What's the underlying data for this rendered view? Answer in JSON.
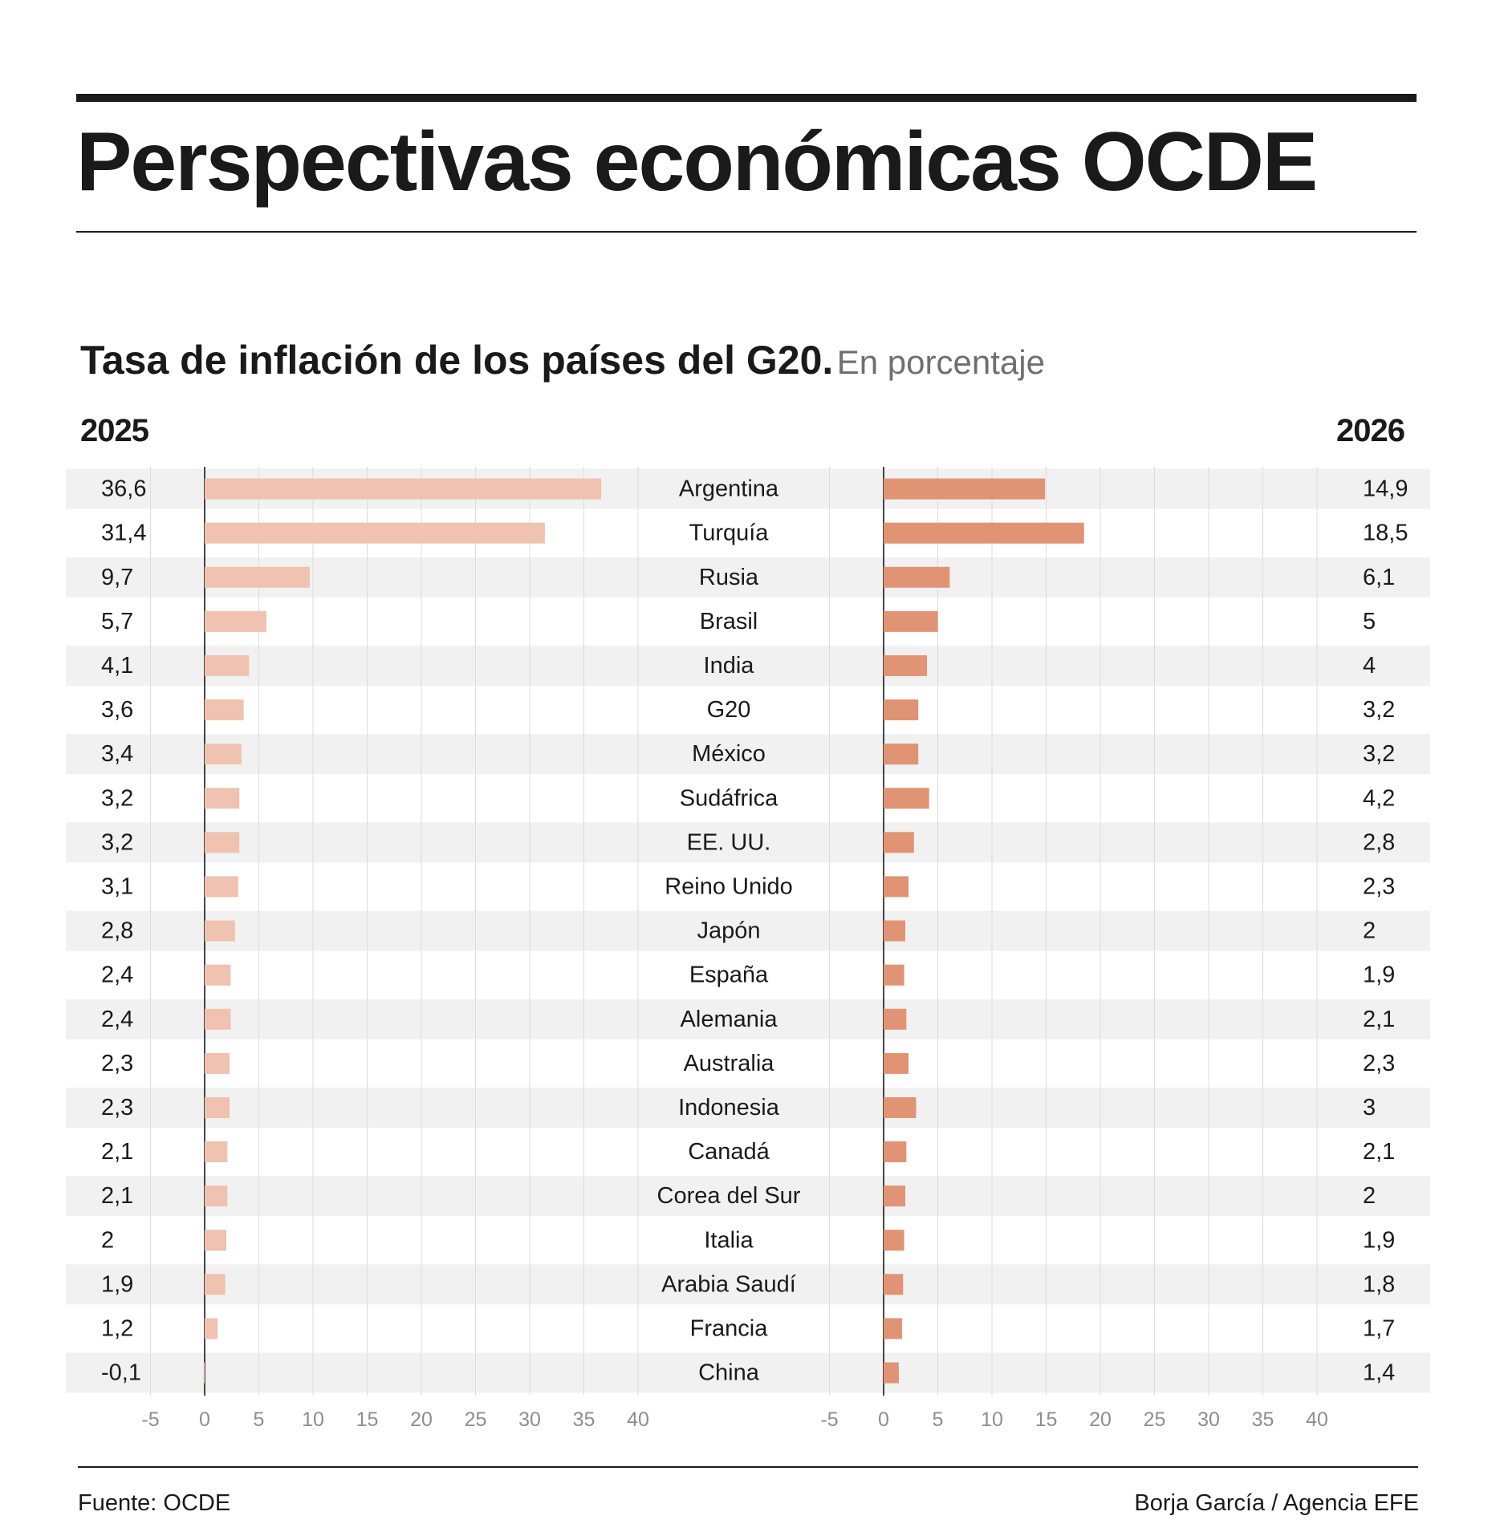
{
  "title": "Perspectivas económicas OCDE",
  "subtitle": {
    "main": "Tasa de inflación de los países del G20.",
    "sub": "En porcentaje"
  },
  "years": {
    "left": "2025",
    "right": "2026"
  },
  "footer": {
    "source": "Fuente: OCDE",
    "credit": "Borja García / Agencia EFE"
  },
  "colors": {
    "bar_2025": "#efc3af",
    "bar_2026": "#e09474",
    "row_stripe": "#f1f1f1",
    "gridline": "#dcdcdc",
    "axis_tick": "#8e8e8e"
  },
  "chart_data": {
    "type": "bar",
    "orientation": "horizontal",
    "categories": [
      "Argentina",
      "Turquía",
      "Rusia",
      "Brasil",
      "India",
      "G20",
      "México",
      "Sudáfrica",
      "EE. UU.",
      "Reino Unido",
      "Japón",
      "España",
      "Alemania",
      "Australia",
      "Indonesia",
      "Canadá",
      "Corea del Sur",
      "Italia",
      "Arabia Saudí",
      "Francia",
      "China"
    ],
    "series": [
      {
        "name": "2025",
        "values": [
          36.6,
          31.4,
          9.7,
          5.7,
          4.1,
          3.6,
          3.4,
          3.2,
          3.2,
          3.1,
          2.8,
          2.4,
          2.4,
          2.3,
          2.3,
          2.1,
          2.1,
          2.0,
          1.9,
          1.2,
          -0.1
        ],
        "labels": [
          "36,6",
          "31,4",
          "9,7",
          "5,7",
          "4,1",
          "3,6",
          "3,4",
          "3,2",
          "3,2",
          "3,1",
          "2,8",
          "2,4",
          "2,4",
          "2,3",
          "2,3",
          "2,1",
          "2,1",
          "2",
          "1,9",
          "1,2",
          "-0,1"
        ]
      },
      {
        "name": "2026",
        "values": [
          14.9,
          18.5,
          6.1,
          5.0,
          4.0,
          3.2,
          3.2,
          4.2,
          2.8,
          2.3,
          2.0,
          1.9,
          2.1,
          2.3,
          3.0,
          2.1,
          2.0,
          1.9,
          1.8,
          1.7,
          1.4
        ],
        "labels": [
          "14,9",
          "18,5",
          "6,1",
          "5",
          "4",
          "3,2",
          "3,2",
          "4,2",
          "2,8",
          "2,3",
          "2",
          "1,9",
          "2,1",
          "2,3",
          "3",
          "2,1",
          "2",
          "1,9",
          "1,8",
          "1,7",
          "1,4"
        ]
      }
    ],
    "xlim": [
      -5,
      40
    ],
    "xticks": [
      -5,
      0,
      5,
      10,
      15,
      20,
      25,
      30,
      35,
      40
    ],
    "unit": "%"
  }
}
